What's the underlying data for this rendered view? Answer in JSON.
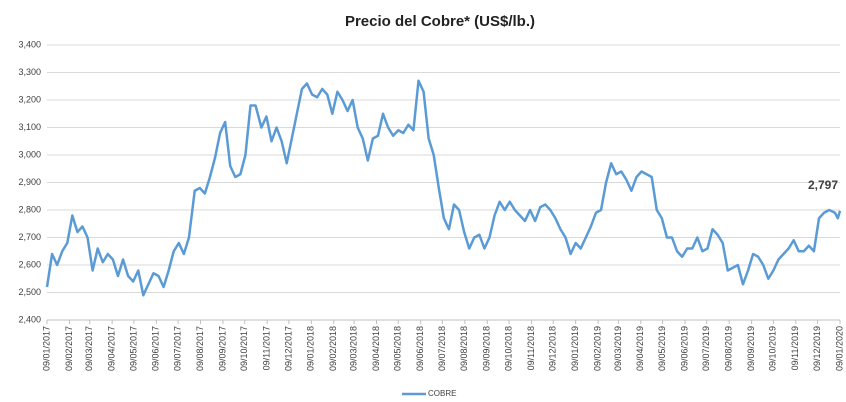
{
  "chart_data": {
    "type": "line",
    "title": "Precio del Cobre* (US$/lb.)",
    "x": [
      "09/01/2017",
      "16/01/2017",
      "23/01/2017",
      "30/01/2017",
      "06/02/2017",
      "13/02/2017",
      "20/02/2017",
      "27/02/2017",
      "06/03/2017",
      "13/03/2017",
      "20/03/2017",
      "27/03/2017",
      "03/04/2017",
      "10/04/2017",
      "17/04/2017",
      "24/04/2017",
      "01/05/2017",
      "08/05/2017",
      "15/05/2017",
      "22/05/2017",
      "29/05/2017",
      "05/06/2017",
      "12/06/2017",
      "19/06/2017",
      "26/06/2017",
      "03/07/2017",
      "10/07/2017",
      "17/07/2017",
      "24/07/2017",
      "01/08/2017",
      "08/08/2017",
      "15/08/2017",
      "22/08/2017",
      "29/08/2017",
      "05/09/2017",
      "12/09/2017",
      "19/09/2017",
      "26/09/2017",
      "03/10/2017",
      "10/10/2017",
      "17/10/2017",
      "24/10/2017",
      "01/11/2017",
      "08/11/2017",
      "15/11/2017",
      "22/11/2017",
      "29/11/2017",
      "06/12/2017",
      "13/12/2017",
      "20/12/2017",
      "27/12/2017",
      "03/01/2018",
      "10/01/2018",
      "17/01/2018",
      "24/01/2018",
      "31/01/2018",
      "07/02/2018",
      "14/02/2018",
      "21/02/2018",
      "28/02/2018",
      "07/03/2018",
      "14/03/2018",
      "21/03/2018",
      "28/03/2018",
      "04/04/2018",
      "11/04/2018",
      "18/04/2018",
      "25/04/2018",
      "02/05/2018",
      "09/05/2018",
      "16/05/2018",
      "23/05/2018",
      "30/05/2018",
      "06/06/2018",
      "13/06/2018",
      "20/06/2018",
      "27/06/2018",
      "04/07/2018",
      "11/07/2018",
      "18/07/2018",
      "25/07/2018",
      "01/08/2018",
      "08/08/2018",
      "15/08/2018",
      "22/08/2018",
      "29/08/2018",
      "05/09/2018",
      "12/09/2018",
      "19/09/2018",
      "26/09/2018",
      "03/10/2018",
      "10/10/2018",
      "17/10/2018",
      "24/10/2018",
      "31/10/2018",
      "07/11/2018",
      "14/11/2018",
      "21/11/2018",
      "28/11/2018",
      "05/12/2018",
      "12/12/2018",
      "19/12/2018",
      "26/12/2018",
      "02/01/2019",
      "09/01/2019",
      "16/01/2019",
      "23/01/2019",
      "30/01/2019",
      "06/02/2019",
      "13/02/2019",
      "20/02/2019",
      "27/02/2019",
      "06/03/2019",
      "13/03/2019",
      "20/03/2019",
      "27/03/2019",
      "03/04/2019",
      "10/04/2019",
      "17/04/2019",
      "24/04/2019",
      "01/05/2019",
      "08/05/2019",
      "15/05/2019",
      "22/05/2019",
      "29/05/2019",
      "05/06/2019",
      "12/06/2019",
      "19/06/2019",
      "26/06/2019",
      "03/07/2019",
      "10/07/2019",
      "17/07/2019",
      "24/07/2019",
      "31/07/2019",
      "07/08/2019",
      "14/08/2019",
      "21/08/2019",
      "28/08/2019",
      "04/09/2019",
      "11/09/2019",
      "18/09/2019",
      "25/09/2019",
      "02/10/2019",
      "09/10/2019",
      "16/10/2019",
      "23/10/2019",
      "30/10/2019",
      "06/11/2019",
      "13/11/2019",
      "20/11/2019",
      "27/11/2019",
      "04/12/2019",
      "11/12/2019",
      "18/12/2019",
      "25/12/2019",
      "02/01/2020",
      "06/01/2020",
      "09/01/2020"
    ],
    "series": [
      {
        "name": "COBRE",
        "color": "#5b9bd5",
        "values": [
          2520,
          2640,
          2600,
          2650,
          2680,
          2780,
          2720,
          2740,
          2700,
          2580,
          2660,
          2610,
          2640,
          2620,
          2560,
          2620,
          2560,
          2540,
          2580,
          2490,
          2530,
          2570,
          2560,
          2520,
          2580,
          2650,
          2680,
          2640,
          2700,
          2870,
          2880,
          2860,
          2920,
          2990,
          3080,
          3120,
          2960,
          2920,
          2930,
          3000,
          3180,
          3180,
          3100,
          3140,
          3050,
          3100,
          3050,
          2970,
          3060,
          3150,
          3240,
          3260,
          3220,
          3210,
          3240,
          3220,
          3150,
          3230,
          3200,
          3160,
          3200,
          3100,
          3060,
          2980,
          3060,
          3070,
          3150,
          3100,
          3070,
          3090,
          3080,
          3110,
          3090,
          3270,
          3230,
          3060,
          3000,
          2880,
          2770,
          2730,
          2820,
          2800,
          2720,
          2660,
          2700,
          2710,
          2660,
          2700,
          2780,
          2830,
          2800,
          2830,
          2800,
          2780,
          2760,
          2800,
          2760,
          2810,
          2820,
          2800,
          2770,
          2730,
          2700,
          2640,
          2680,
          2660,
          2700,
          2740,
          2790,
          2800,
          2900,
          2970,
          2930,
          2940,
          2910,
          2870,
          2920,
          2940,
          2930,
          2920,
          2800,
          2770,
          2700,
          2700,
          2650,
          2630,
          2660,
          2660,
          2700,
          2650,
          2660,
          2730,
          2710,
          2680,
          2580,
          2590,
          2600,
          2530,
          2580,
          2640,
          2630,
          2600,
          2550,
          2580,
          2620,
          2640,
          2660,
          2690,
          2650,
          2650,
          2670,
          2650,
          2770,
          2790,
          2800,
          2790,
          2770,
          2797
        ],
        "value_labels": [
          null,
          null,
          null,
          null,
          null,
          null,
          null,
          null,
          null,
          null,
          null,
          null,
          null,
          null,
          null,
          null,
          null,
          null,
          null,
          null,
          null,
          null,
          null,
          null,
          null,
          null,
          null,
          null,
          null,
          null,
          null,
          null,
          null,
          null,
          null,
          null,
          null,
          null,
          null,
          null,
          null,
          null,
          null,
          null,
          null,
          null,
          null,
          null,
          null,
          null,
          null,
          null,
          null,
          null,
          null,
          null,
          null,
          null,
          null,
          null,
          null,
          null,
          null,
          null,
          null,
          null,
          null,
          null,
          null,
          null,
          null,
          null,
          null,
          null,
          null,
          null,
          null,
          null,
          null,
          null,
          null,
          null,
          null,
          null,
          null,
          null,
          null,
          null,
          null,
          null,
          null,
          null,
          null,
          null,
          null,
          null,
          null,
          null,
          null,
          null,
          null,
          null,
          null,
          null,
          null,
          null,
          null,
          null,
          null,
          null,
          null,
          null,
          null,
          null,
          null,
          null,
          null,
          null,
          null,
          null,
          null,
          null,
          null,
          null,
          null,
          null,
          null,
          null,
          null,
          null,
          null,
          null,
          null,
          null,
          null,
          null,
          null,
          null,
          null,
          null,
          null,
          null,
          null,
          null,
          null,
          null,
          null,
          null,
          null,
          null,
          null,
          null,
          null,
          null,
          null,
          null,
          null,
          "2,797"
        ]
      }
    ],
    "xlim": [
      "09/01/2017",
      "09/01/2020"
    ],
    "xticks": [
      "09/01/2017",
      "09/02/2017",
      "09/03/2017",
      "09/04/2017",
      "09/05/2017",
      "09/06/2017",
      "09/07/2017",
      "09/08/2017",
      "09/09/2017",
      "09/10/2017",
      "09/11/2017",
      "09/12/2017",
      "09/01/2018",
      "09/02/2018",
      "09/03/2018",
      "09/04/2018",
      "09/05/2018",
      "09/06/2018",
      "09/07/2018",
      "09/08/2018",
      "09/09/2018",
      "09/10/2018",
      "09/11/2018",
      "09/12/2018",
      "09/01/2019",
      "09/02/2019",
      "09/03/2019",
      "09/04/2019",
      "09/05/2019",
      "09/06/2019",
      "09/07/2019",
      "09/08/2019",
      "09/09/2019",
      "09/10/2019",
      "09/11/2019",
      "09/12/2019",
      "09/01/2020"
    ],
    "ylim": [
      2400,
      3400
    ],
    "yticks": [
      {
        "value": 2400,
        "label": "2,400"
      },
      {
        "value": 2500,
        "label": "2,500"
      },
      {
        "value": 2600,
        "label": "2,600"
      },
      {
        "value": 2700,
        "label": "2,700"
      },
      {
        "value": 2800,
        "label": "2,800"
      },
      {
        "value": 2900,
        "label": "2,900"
      },
      {
        "value": 3000,
        "label": "3,000"
      },
      {
        "value": 3100,
        "label": "3,100"
      },
      {
        "value": 3200,
        "label": "3,200"
      },
      {
        "value": 3300,
        "label": "3,300"
      },
      {
        "value": 3400,
        "label": "3,400"
      }
    ],
    "grid": true,
    "legend": "bottom"
  }
}
